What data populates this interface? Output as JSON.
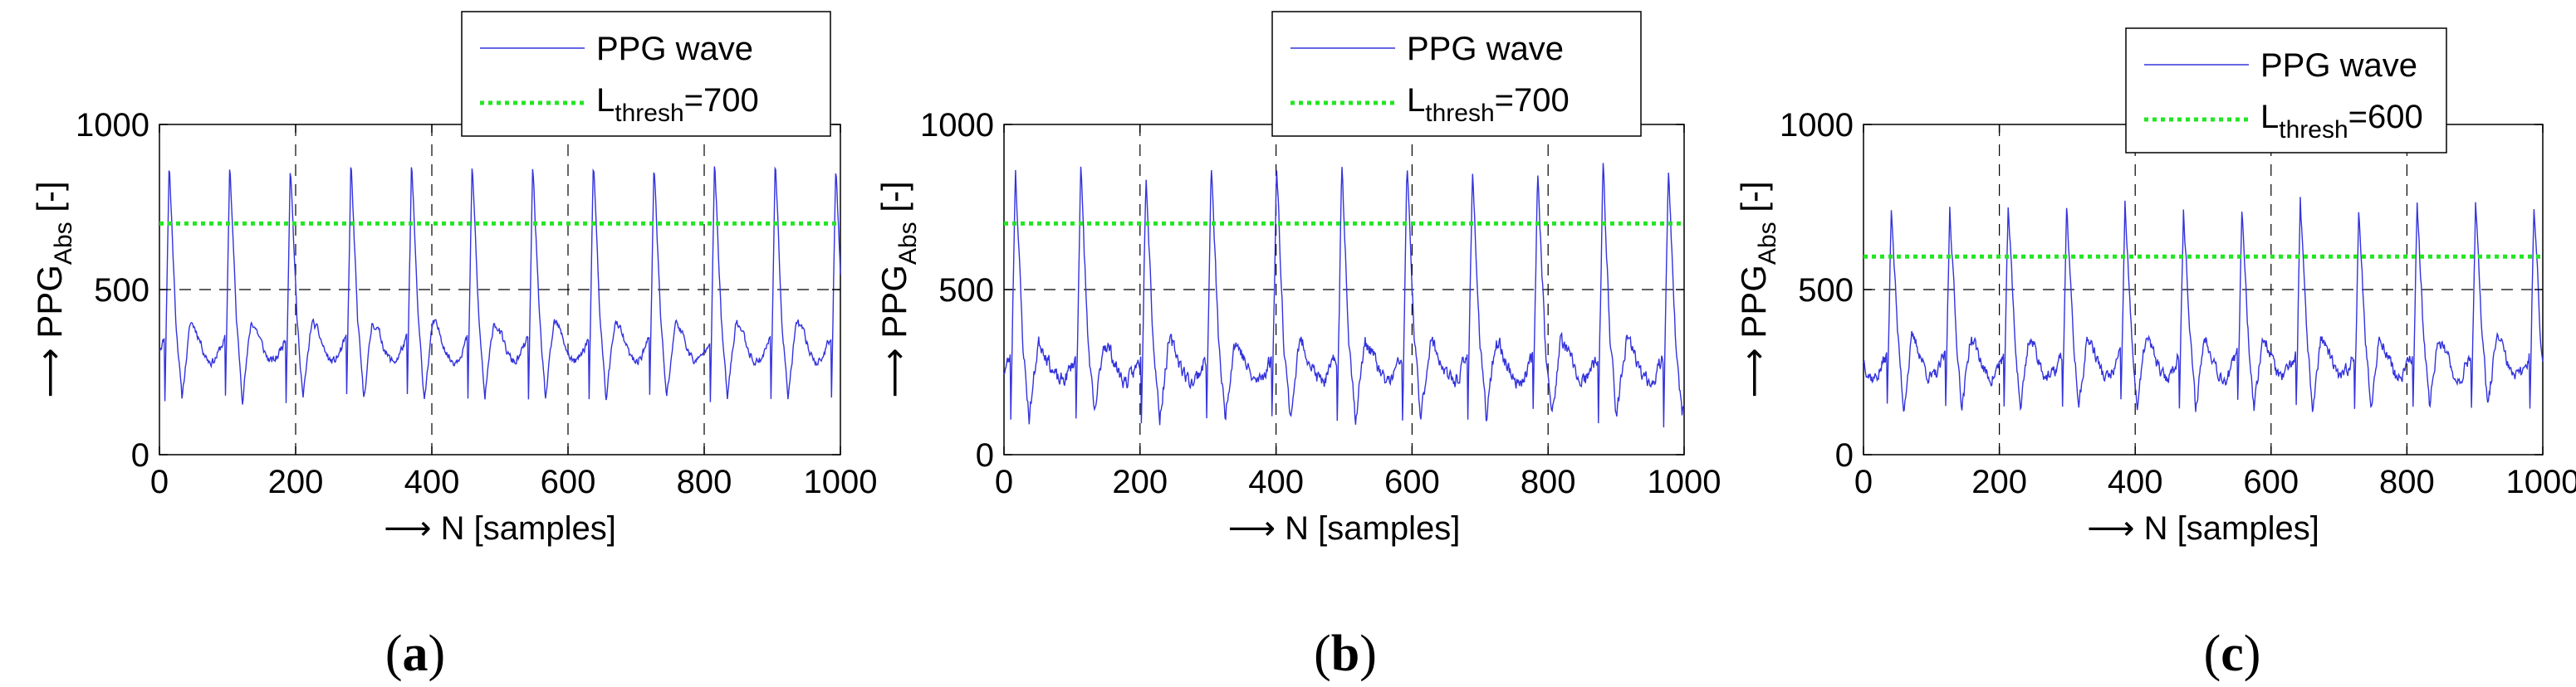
{
  "figure": {
    "panels": [
      {
        "label_open": "(",
        "label_letter": "a",
        "label_close": ")"
      },
      {
        "label_open": "(",
        "label_letter": "b",
        "label_close": ")"
      },
      {
        "label_open": "(",
        "label_letter": "c",
        "label_close": ")"
      }
    ]
  },
  "colors": {
    "wave": "#3333dd",
    "threshold": "#22e622",
    "reference_lines": "#000000",
    "axes": "#000000"
  },
  "chart_data": [
    {
      "type": "line",
      "xlabel_arrow": "⟶",
      "xlabel": "N [samples]",
      "ylabel_arrow": "⟶",
      "ylabel_main": "PPG",
      "ylabel_sub": "Abs",
      "ylabel_unit": "[-]",
      "xlim": [
        0,
        1000
      ],
      "ylim": [
        0,
        1000
      ],
      "xticks": [
        0,
        200,
        400,
        600,
        800,
        1000
      ],
      "xtick_labels": [
        "0",
        "200",
        "400",
        "600",
        "800",
        "1000"
      ],
      "yticks": [
        0,
        500,
        1000
      ],
      "ytick_labels": [
        "0",
        "500",
        "1000"
      ],
      "vertical_reference_lines": [
        200,
        400,
        600,
        800
      ],
      "horizontal_reference_line": 500,
      "legend": {
        "position": "top-right",
        "wave_label": "PPG wave",
        "thresh_prefix": "L",
        "thresh_sub": "thresh",
        "thresh_suffix": "=700"
      },
      "threshold": 700,
      "wave": {
        "period": 89,
        "offset": 8,
        "peak": 890,
        "trough": 170,
        "mid": 350,
        "noise": 25,
        "seed": 11
      },
      "series": [
        {
          "name": "PPG wave",
          "x_range": [
            0,
            1000
          ],
          "description_values": {
            "peaks_approx": 890,
            "troughs_approx": 170
          }
        },
        {
          "name": "Lthresh=700",
          "y": 700
        }
      ]
    },
    {
      "type": "line",
      "xlabel_arrow": "⟶",
      "xlabel": "N [samples]",
      "ylabel_arrow": "⟶",
      "ylabel_main": "PPG",
      "ylabel_sub": "Abs",
      "ylabel_unit": "[-]",
      "xlim": [
        0,
        1000
      ],
      "ylim": [
        0,
        1000
      ],
      "xticks": [
        0,
        200,
        400,
        600,
        800,
        1000
      ],
      "xtick_labels": [
        "0",
        "200",
        "400",
        "600",
        "800",
        "1000"
      ],
      "yticks": [
        0,
        500,
        1000
      ],
      "ytick_labels": [
        "0",
        "500",
        "1000"
      ],
      "vertical_reference_lines": [
        200,
        400,
        600,
        800
      ],
      "horizontal_reference_line": 500,
      "legend": {
        "position": "top-right",
        "wave_label": "PPG wave",
        "thresh_prefix": "L",
        "thresh_sub": "thresh",
        "thresh_suffix": "=700"
      },
      "threshold": 700,
      "wave": {
        "period": 96,
        "offset": 10,
        "peak": 880,
        "trough": 110,
        "mid": 290,
        "noise": 45,
        "seed": 23
      },
      "series": [
        {
          "name": "PPG wave",
          "x_range": [
            0,
            1000
          ],
          "description_values": {
            "peaks_approx": 880,
            "troughs_approx": 100
          }
        },
        {
          "name": "Lthresh=700",
          "y": 700
        }
      ]
    },
    {
      "type": "line",
      "xlabel_arrow": "⟶",
      "xlabel": "N [samples]",
      "ylabel_arrow": "⟶",
      "ylabel_main": "PPG",
      "ylabel_sub": "Abs",
      "ylabel_unit": "[-]",
      "xlim": [
        0,
        1000
      ],
      "ylim": [
        0,
        1000
      ],
      "xticks": [
        0,
        200,
        400,
        600,
        800,
        1000
      ],
      "xtick_labels": [
        "0",
        "200",
        "400",
        "600",
        "800",
        "1000"
      ],
      "yticks": [
        0,
        500,
        1000
      ],
      "ytick_labels": [
        "0",
        "500",
        "1000"
      ],
      "vertical_reference_lines": [
        200,
        400,
        600,
        800
      ],
      "horizontal_reference_line": 500,
      "legend": {
        "position": "top-right",
        "wave_label": "PPG wave",
        "thresh_prefix": "L",
        "thresh_sub": "thresh",
        "thresh_suffix": "=600"
      },
      "threshold": 600,
      "wave": {
        "period": 86,
        "offset": 35,
        "peak": 760,
        "trough": 140,
        "mid": 300,
        "noise": 40,
        "seed": 37
      },
      "series": [
        {
          "name": "PPG wave",
          "x_range": [
            0,
            1000
          ],
          "description_values": {
            "peaks_approx": 760,
            "troughs_approx": 120
          }
        },
        {
          "name": "Lthresh=600",
          "y": 600
        }
      ]
    }
  ]
}
